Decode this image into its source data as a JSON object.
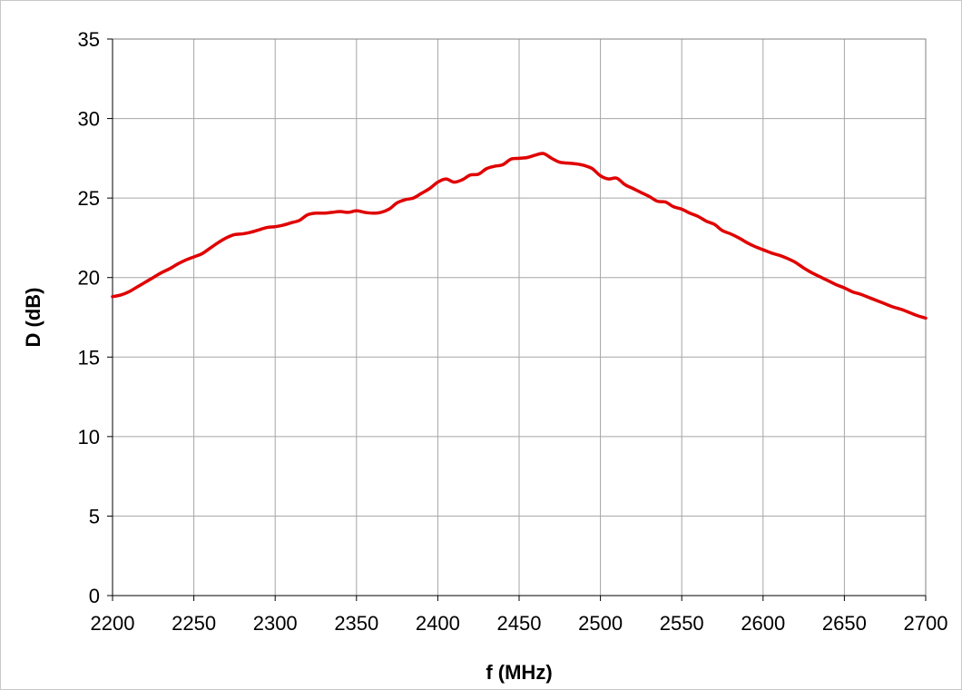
{
  "chart_data": {
    "type": "line",
    "title": "",
    "xlabel": "f (MHz)",
    "ylabel": "D (dB)",
    "xlim": [
      2200,
      2700
    ],
    "ylim": [
      0,
      35
    ],
    "xticks": [
      2200,
      2250,
      2300,
      2350,
      2400,
      2450,
      2500,
      2550,
      2600,
      2650,
      2700
    ],
    "yticks": [
      0,
      5,
      10,
      15,
      20,
      25,
      30,
      35
    ],
    "grid": true,
    "legend": "none",
    "series": [
      {
        "color": "#e00000",
        "x": [
          2200,
          2205,
          2210,
          2215,
          2220,
          2225,
          2230,
          2235,
          2240,
          2245,
          2250,
          2255,
          2260,
          2265,
          2270,
          2275,
          2280,
          2285,
          2290,
          2295,
          2300,
          2305,
          2310,
          2315,
          2320,
          2325,
          2330,
          2335,
          2340,
          2345,
          2350,
          2355,
          2360,
          2365,
          2370,
          2375,
          2380,
          2385,
          2390,
          2395,
          2400,
          2405,
          2410,
          2415,
          2420,
          2425,
          2430,
          2435,
          2440,
          2445,
          2450,
          2455,
          2460,
          2465,
          2470,
          2475,
          2480,
          2485,
          2490,
          2495,
          2500,
          2505,
          2510,
          2515,
          2520,
          2525,
          2530,
          2535,
          2540,
          2545,
          2550,
          2555,
          2560,
          2565,
          2570,
          2575,
          2580,
          2585,
          2590,
          2595,
          2600,
          2605,
          2610,
          2615,
          2620,
          2625,
          2630,
          2635,
          2640,
          2645,
          2650,
          2655,
          2660,
          2665,
          2670,
          2675,
          2680,
          2685,
          2690,
          2695,
          2700
        ],
        "y": [
          18.8,
          18.9,
          19.1,
          19.4,
          19.7,
          20.0,
          20.3,
          20.55,
          20.85,
          21.1,
          21.3,
          21.5,
          21.85,
          22.2,
          22.5,
          22.7,
          22.75,
          22.85,
          23.0,
          23.15,
          23.2,
          23.3,
          23.45,
          23.6,
          23.95,
          24.05,
          24.05,
          24.1,
          24.15,
          24.1,
          24.2,
          24.1,
          24.05,
          24.1,
          24.3,
          24.7,
          24.9,
          25.0,
          25.3,
          25.6,
          26.0,
          26.2,
          26.0,
          26.15,
          26.45,
          26.5,
          26.85,
          27.0,
          27.1,
          27.45,
          27.5,
          27.55,
          27.7,
          27.8,
          27.5,
          27.25,
          27.2,
          27.15,
          27.05,
          26.85,
          26.4,
          26.2,
          26.25,
          25.85,
          25.6,
          25.35,
          25.1,
          24.8,
          24.75,
          24.45,
          24.3,
          24.05,
          23.85,
          23.55,
          23.35,
          22.95,
          22.75,
          22.5,
          22.2,
          21.95,
          21.75,
          21.55,
          21.4,
          21.2,
          20.95,
          20.6,
          20.3,
          20.05,
          19.8,
          19.55,
          19.35,
          19.1,
          18.95,
          18.75,
          18.55,
          18.35,
          18.15,
          18.0,
          17.8,
          17.6,
          17.45
        ]
      }
    ]
  }
}
